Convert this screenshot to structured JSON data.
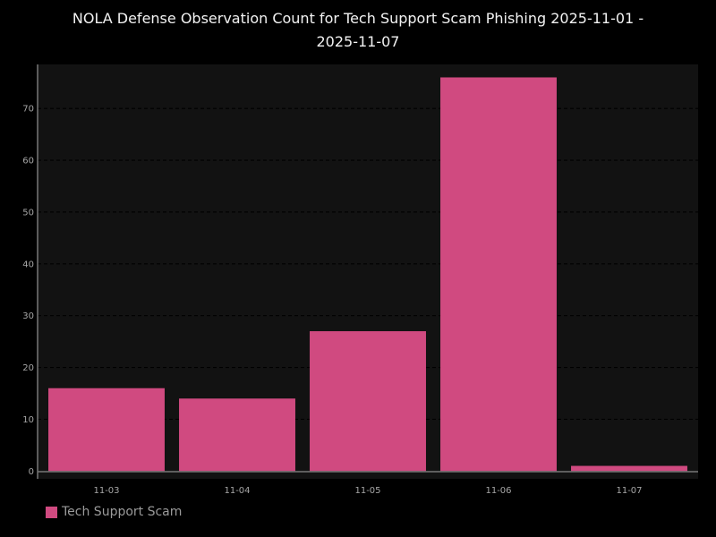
{
  "chart_data": {
    "type": "bar",
    "title_lines": [
      "NOLA Defense Observation Count for Tech Support Scam Phishing 2025-11-01 -",
      "2025-11-07"
    ],
    "categories": [
      "11-03",
      "11-04",
      "11-05",
      "11-06",
      "11-07"
    ],
    "series": [
      {
        "name": "Tech Support Scam",
        "values": [
          16,
          14,
          27,
          76,
          1
        ]
      }
    ],
    "y_ticks": [
      0,
      10,
      20,
      30,
      40,
      50,
      60,
      70
    ],
    "ylim": [
      -1.5,
      78.5
    ],
    "xlabel": "",
    "ylabel": "",
    "grid": true,
    "legend_position": "bottom-left"
  },
  "colors": {
    "bar": "#d04a80",
    "plot_background": "#121212",
    "gridline": "#000000",
    "axis": "#777777"
  },
  "legend": {
    "label": "Tech Support Scam"
  }
}
